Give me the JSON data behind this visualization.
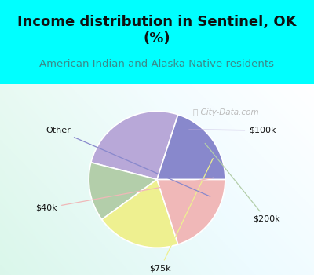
{
  "title": "Income distribution in Sentinel, OK\n(%)",
  "subtitle": "American Indian and Alaska Native residents",
  "slices": [
    "$100k",
    "$200k",
    "$75k",
    "$40k",
    "Other"
  ],
  "values": [
    26,
    14,
    20,
    20,
    20
  ],
  "colors": [
    "#b8a8d8",
    "#b3ceaa",
    "#eef090",
    "#f0b8b8",
    "#8888cc"
  ],
  "bg_color_top": "#00ffff",
  "title_color": "#101010",
  "subtitle_color": "#3a8a8a",
  "watermark": "City-Data.com",
  "startangle": 72,
  "title_fontsize": 13,
  "subtitle_fontsize": 9.5
}
